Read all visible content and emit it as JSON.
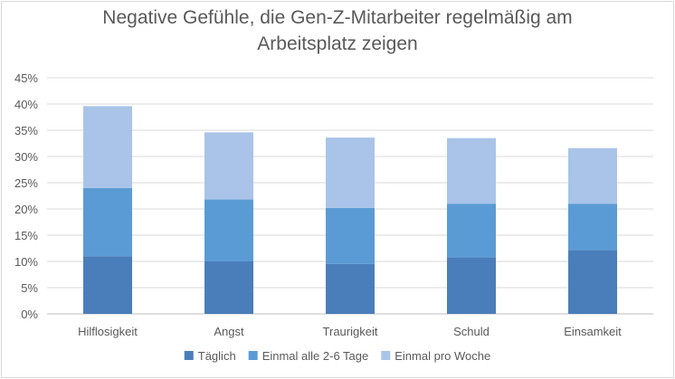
{
  "chart_data": {
    "type": "bar",
    "stacked": true,
    "title_lines": [
      "Negative Gefühle, die Gen-Z-Mitarbeiter regelmäßig am",
      "Arbeitsplatz zeigen"
    ],
    "xlabel": "",
    "ylabel": "",
    "categories": [
      "Hilflosigkeit",
      "Angst",
      "Traurigkeit",
      "Schuld",
      "Einsamkeit"
    ],
    "series": [
      {
        "name": "Täglich",
        "color": "#4a7ebb",
        "values": [
          11,
          10,
          9.5,
          10.8,
          12.2
        ]
      },
      {
        "name": "Einmal alle 2-6 Tage",
        "color": "#5b9bd5",
        "values": [
          13,
          11.8,
          10.7,
          10.2,
          8.8
        ]
      },
      {
        "name": "Einmal pro Woche",
        "color": "#a9c4e8",
        "values": [
          15.6,
          12.8,
          13.4,
          12.5,
          10.6
        ]
      }
    ],
    "ylim": [
      0,
      45
    ],
    "y_ticks": [
      "0%",
      "5%",
      "10%",
      "15%",
      "20%",
      "25%",
      "30%",
      "35%",
      "40%",
      "45%"
    ],
    "grid": true,
    "legend_position": "bottom"
  }
}
